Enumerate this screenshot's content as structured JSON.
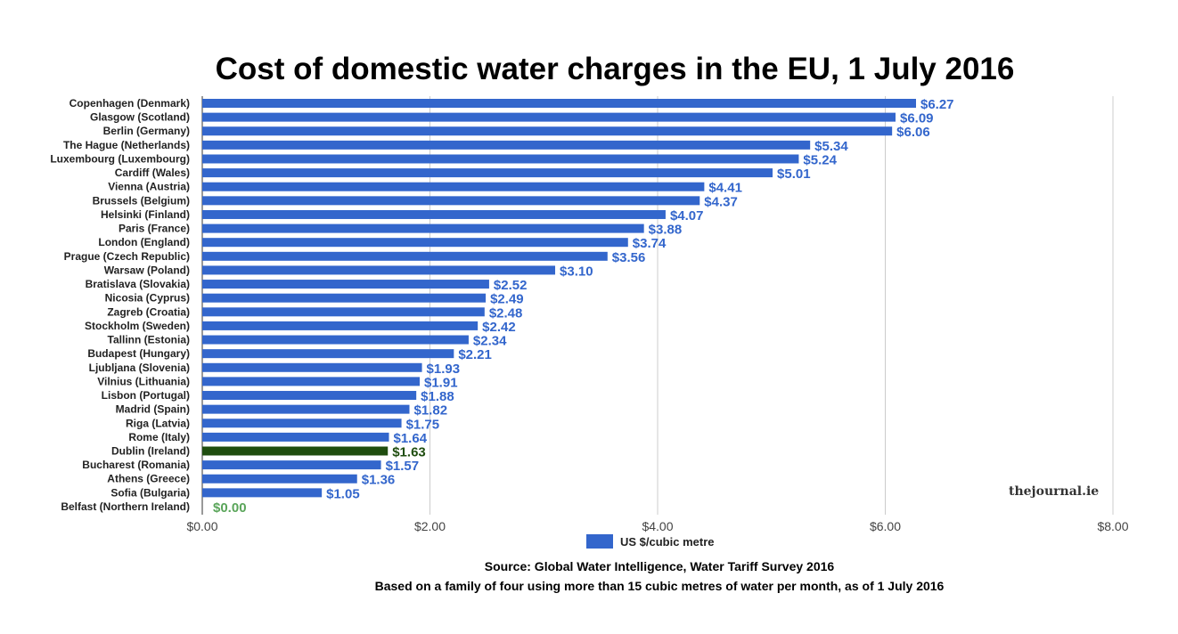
{
  "chart_data": {
    "type": "bar",
    "orientation": "horizontal",
    "title": "Cost of domestic water charges in the EU, 1 July 2016",
    "categories": [
      "Copenhagen (Denmark)",
      "Glasgow (Scotland)",
      "Berlin (Germany)",
      "The Hague (Netherlands)",
      "Luxembourg (Luxembourg)",
      "Cardiff (Wales)",
      "Vienna (Austria)",
      "Brussels (Belgium)",
      "Helsinki (Finland)",
      "Paris (France)",
      "London (England)",
      "Prague (Czech Republic)",
      "Warsaw (Poland)",
      "Bratislava (Slovakia)",
      "Nicosia (Cyprus)",
      "Zagreb (Croatia)",
      "Stockholm (Sweden)",
      "Tallinn (Estonia)",
      "Budapest (Hungary)",
      "Ljubljana (Slovenia)",
      "Vilnius (Lithuania)",
      "Lisbon (Portugal)",
      "Madrid (Spain)",
      "Riga (Latvia)",
      "Rome (Italy)",
      "Dublin (Ireland)",
      "Bucharest (Romania)",
      "Athens (Greece)",
      "Sofia (Bulgaria)",
      "Belfast (Northern Ireland)"
    ],
    "series": [
      {
        "name": "US $/cubic metre",
        "values": [
          6.27,
          6.09,
          6.06,
          5.34,
          5.24,
          5.01,
          4.41,
          4.37,
          4.07,
          3.88,
          3.74,
          3.56,
          3.1,
          2.52,
          2.49,
          2.48,
          2.42,
          2.34,
          2.21,
          1.93,
          1.91,
          1.88,
          1.82,
          1.75,
          1.64,
          1.63,
          1.57,
          1.36,
          1.05,
          0.0
        ],
        "value_labels": [
          "$6.27",
          "$6.09",
          "$6.06",
          "$5.34",
          "$5.24",
          "$5.01",
          "$4.41",
          "$4.37",
          "$4.07",
          "$3.88",
          "$3.74",
          "$3.56",
          "$3.10",
          "$2.52",
          "$2.49",
          "$2.48",
          "$2.42",
          "$2.34",
          "$2.21",
          "$1.93",
          "$1.91",
          "$1.88",
          "$1.82",
          "$1.75",
          "$1.64",
          "$1.63",
          "$1.57",
          "$1.36",
          "$1.05",
          "$0.00"
        ]
      }
    ],
    "highlight": {
      "Dublin (Ireland)": "#1f4d0f",
      "Belfast (Northern Ireland)": "#5aa55a"
    },
    "xlim": [
      0,
      8
    ],
    "xticks": [
      0,
      2,
      4,
      6,
      8
    ],
    "xtick_labels": [
      "$0.00",
      "$2.00",
      "$4.00",
      "$6.00",
      "$8.00"
    ],
    "grid": true,
    "legend_position": "bottom"
  },
  "legend": {
    "label": "US $/cubic metre"
  },
  "source": "Source: Global Water Intelligence, Water Tariff Survey 2016",
  "footnote": "Based on a family of four using more than 15 cubic metres of water per month, as of 1 July 2016",
  "watermark": "thejournal.ie",
  "colors": {
    "bar": "#3366cc",
    "label": "#3366cc",
    "highlight_bar": "#1f4d0f",
    "highlight_label": "#1f4d0f",
    "zero_label": "#5aa55a",
    "grid": "#cccccc"
  }
}
